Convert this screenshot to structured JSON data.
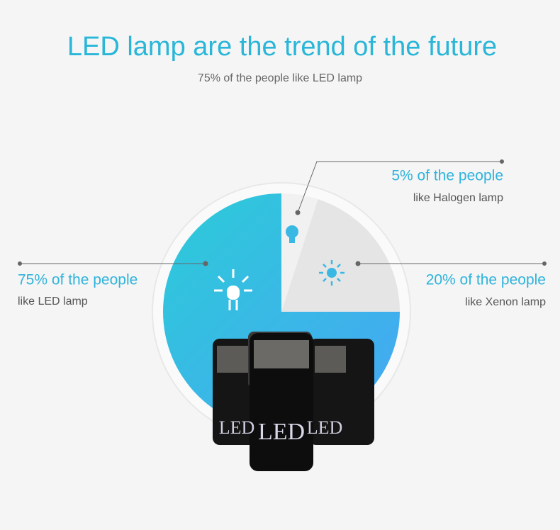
{
  "chart_data": {
    "type": "pie",
    "title": "LED lamp are the trend of the future",
    "subtitle": "75% of the people like LED lamp",
    "categories": [
      "like LED lamp",
      "like Halogen lamp",
      "like Xenon lamp"
    ],
    "values": [
      75,
      5,
      20
    ],
    "value_labels": [
      "75% of the people",
      "5% of the people",
      "20% of the people"
    ],
    "colors": [
      "#36bbe4",
      "#f1f1f1",
      "#e5e5e5"
    ]
  }
}
